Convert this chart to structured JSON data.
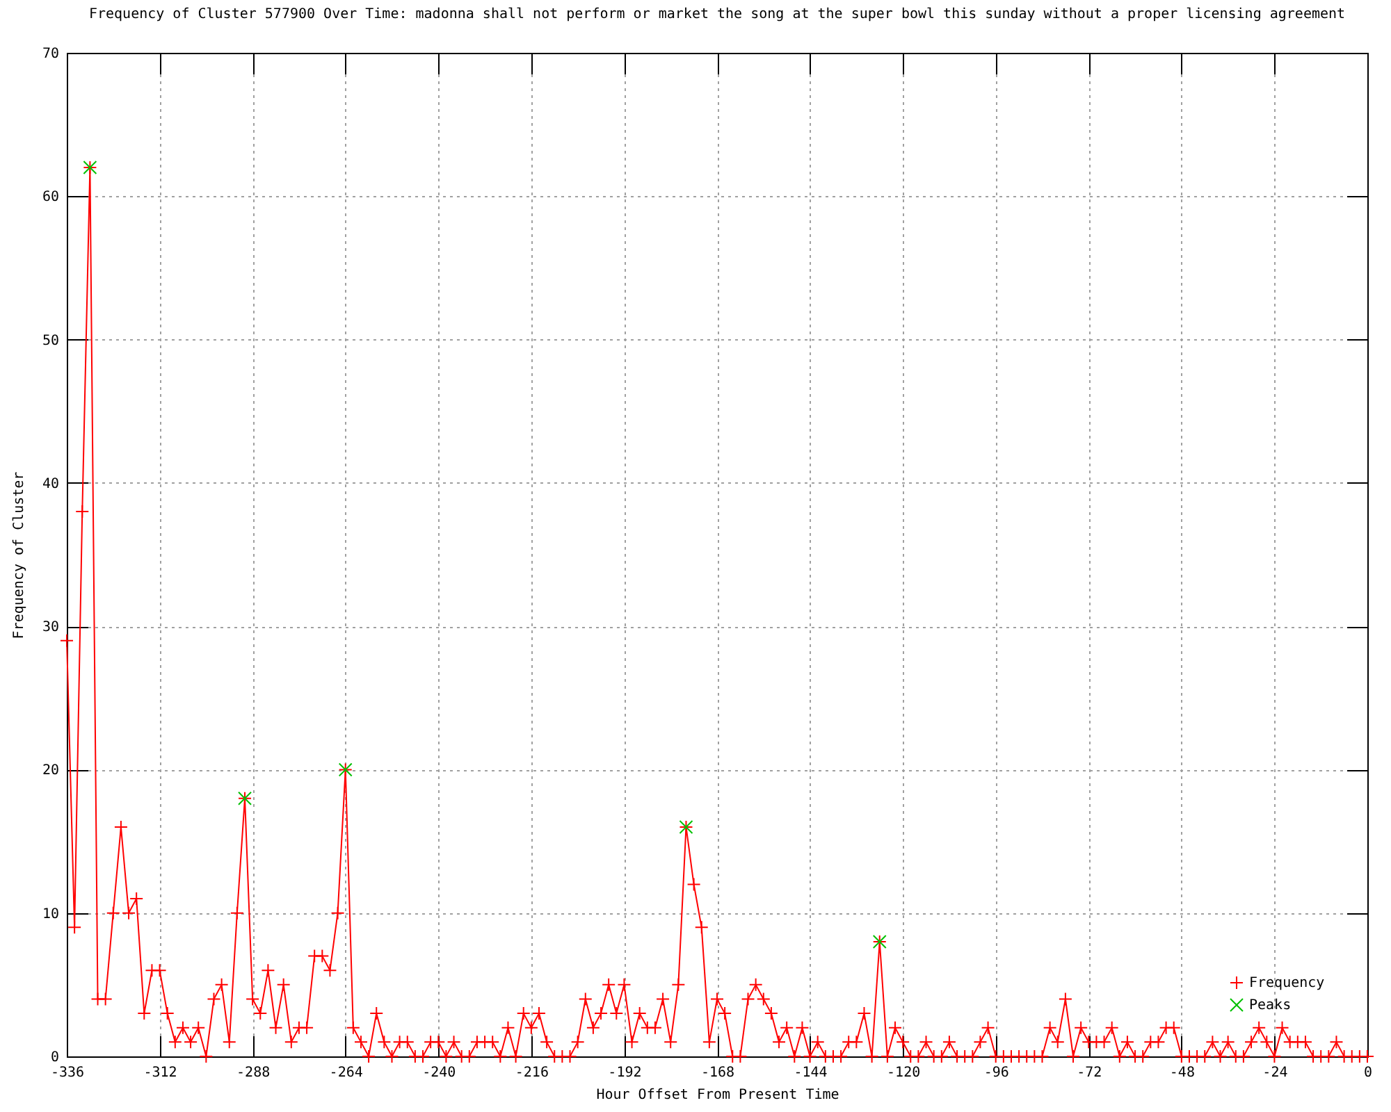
{
  "chart_data": {
    "type": "line",
    "title": "Frequency of Cluster 577900 Over Time: madonna shall not perform or market the song at the super bowl this sunday without a proper licensing agreement",
    "xlabel": "Hour Offset From Present Time",
    "ylabel": "Frequency of Cluster",
    "x": [
      -336,
      -334,
      -332,
      -330,
      -328,
      -326,
      -324,
      -322,
      -320,
      -318,
      -316,
      -314,
      -312,
      -310,
      -308,
      -306,
      -304,
      -302,
      -300,
      -298,
      -296,
      -294,
      -292,
      -290,
      -288,
      -286,
      -284,
      -282,
      -280,
      -278,
      -276,
      -274,
      -272,
      -270,
      -268,
      -266,
      -264,
      -262,
      -260,
      -258,
      -256,
      -254,
      -252,
      -250,
      -248,
      -246,
      -244,
      -242,
      -240,
      -238,
      -236,
      -234,
      -232,
      -230,
      -228,
      -226,
      -224,
      -222,
      -220,
      -218,
      -216,
      -214,
      -212,
      -210,
      -208,
      -206,
      -204,
      -202,
      -200,
      -198,
      -196,
      -194,
      -192,
      -190,
      -188,
      -186,
      -184,
      -182,
      -180,
      -178,
      -176,
      -174,
      -172,
      -170,
      -168,
      -166,
      -164,
      -162,
      -160,
      -158,
      -156,
      -154,
      -152,
      -150,
      -148,
      -146,
      -144,
      -142,
      -140,
      -138,
      -136,
      -134,
      -132,
      -130,
      -128,
      -126,
      -124,
      -122,
      -120,
      -118,
      -116,
      -114,
      -112,
      -110,
      -108,
      -106,
      -104,
      -102,
      -100,
      -98,
      -96,
      -94,
      -92,
      -90,
      -88,
      -86,
      -84,
      -82,
      -80,
      -78,
      -76,
      -74,
      -72,
      -70,
      -68,
      -66,
      -64,
      -62,
      -60,
      -58,
      -56,
      -54,
      -52,
      -50,
      -48,
      -46,
      -44,
      -42,
      -40,
      -38,
      -36,
      -34,
      -32,
      -30,
      -28,
      -26,
      -24,
      -22,
      -20,
      -18,
      -16,
      -14,
      -12,
      -10,
      -8,
      -6,
      -4,
      -2,
      0
    ],
    "series": [
      {
        "name": "Frequency",
        "color": "#ff0000",
        "values": [
          29,
          9,
          38,
          62,
          4,
          4,
          10,
          16,
          10,
          11,
          3,
          6,
          6,
          3,
          1,
          2,
          1,
          2,
          0,
          4,
          5,
          1,
          10,
          18,
          4,
          3,
          6,
          2,
          5,
          1,
          2,
          2,
          7,
          7,
          6,
          10,
          20,
          2,
          1,
          0,
          3,
          1,
          0,
          1,
          1,
          0,
          0,
          1,
          1,
          0,
          1,
          0,
          0,
          1,
          1,
          1,
          0,
          2,
          0,
          3,
          2,
          3,
          1,
          0,
          0,
          0,
          1,
          4,
          2,
          3,
          5,
          3,
          5,
          1,
          3,
          2,
          2,
          4,
          1,
          5,
          16,
          12,
          9,
          1,
          4,
          3,
          0,
          0,
          4,
          5,
          4,
          3,
          1,
          2,
          0,
          2,
          0,
          1,
          0,
          0,
          0,
          1,
          1,
          3,
          0,
          8,
          0,
          2,
          1,
          0,
          0,
          1,
          0,
          0,
          1,
          0,
          0,
          0,
          1,
          2,
          0,
          0,
          0,
          0,
          0,
          0,
          0,
          2,
          1,
          4,
          0,
          2,
          1,
          1,
          1,
          2,
          0,
          1,
          0,
          0,
          1,
          1,
          2,
          2,
          0,
          0,
          0,
          0,
          1,
          0,
          1,
          0,
          0,
          1,
          2,
          1,
          0,
          2,
          1,
          1,
          1,
          0,
          0,
          0,
          1,
          0,
          0,
          0,
          0
        ]
      },
      {
        "name": "Peaks",
        "type": "scatter",
        "color": "#00c000",
        "x": [
          -330,
          -290,
          -264,
          -176,
          -126
        ],
        "values": [
          62,
          18,
          20,
          16,
          8
        ]
      }
    ],
    "xlim": [
      -336,
      0
    ],
    "xticks": [
      -336,
      -312,
      -288,
      -264,
      -240,
      -216,
      -192,
      -168,
      -144,
      -120,
      -96,
      -72,
      -48,
      -24,
      0
    ],
    "ylim": [
      0,
      70
    ],
    "yticks": [
      0,
      10,
      20,
      30,
      40,
      50,
      60,
      70
    ],
    "grid": true,
    "legend": "bottom right",
    "marker": "cross"
  }
}
